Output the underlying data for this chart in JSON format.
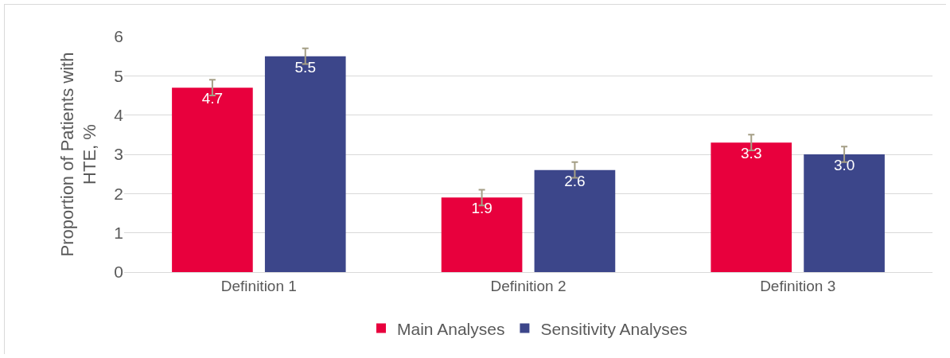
{
  "chart_data": {
    "type": "bar",
    "categories": [
      "Definition 1",
      "Definition 2",
      "Definition 3"
    ],
    "series": [
      {
        "name": "Main Analyses",
        "color": "#e8003d",
        "values": [
          4.7,
          1.9,
          3.3
        ],
        "errors": [
          0.2,
          0.2,
          0.2
        ],
        "value_labels": [
          "4.7",
          "1.9",
          "3.3"
        ]
      },
      {
        "name": "Sensitivity Analyses",
        "color": "#3c468a",
        "values": [
          5.5,
          2.6,
          3.0
        ],
        "errors": [
          0.2,
          0.2,
          0.2
        ],
        "value_labels": [
          "5.5",
          "2.6",
          "3.0"
        ]
      }
    ],
    "ylabel": "Proportion of Patients with HTE, %",
    "ylim": [
      0,
      6
    ],
    "yticks": [
      0,
      1,
      2,
      3,
      4,
      5,
      6
    ],
    "grid": "y",
    "legend": "bottom"
  }
}
